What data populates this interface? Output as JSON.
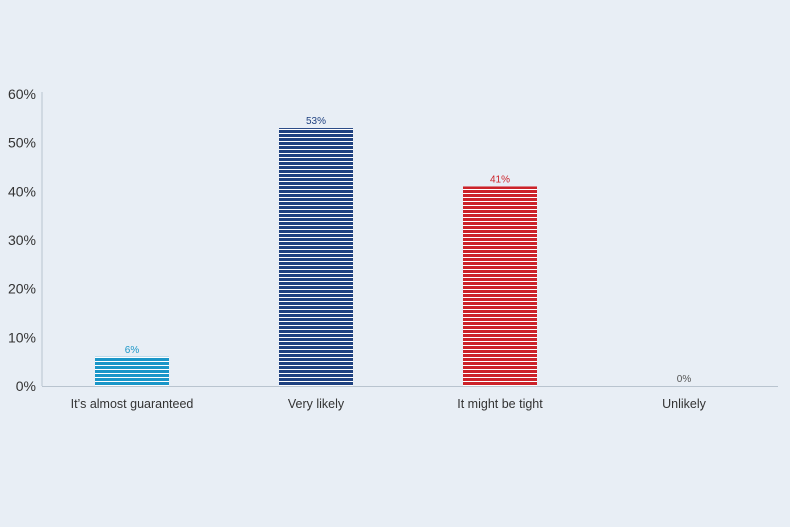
{
  "chart_data": {
    "type": "bar",
    "categories": [
      "It’s almost guaranteed",
      "Very likely",
      "It might be tight",
      "Unlikely"
    ],
    "values": [
      6,
      53,
      41,
      0
    ],
    "data_labels": [
      "6%",
      "53%",
      "41%",
      "0%"
    ],
    "colors": [
      "#1a96c8",
      "#1f4180",
      "#cc2229",
      "#555555"
    ],
    "bar_style": "horizontal-stripes",
    "ylim": [
      0,
      60
    ],
    "yticks": [
      0,
      10,
      20,
      30,
      40,
      50,
      60
    ],
    "ytick_labels": [
      "0%",
      "10%",
      "20%",
      "30%",
      "40%",
      "50%",
      "60%"
    ],
    "grid": false,
    "legend": "none",
    "title": "",
    "xlabel": "",
    "ylabel": ""
  }
}
